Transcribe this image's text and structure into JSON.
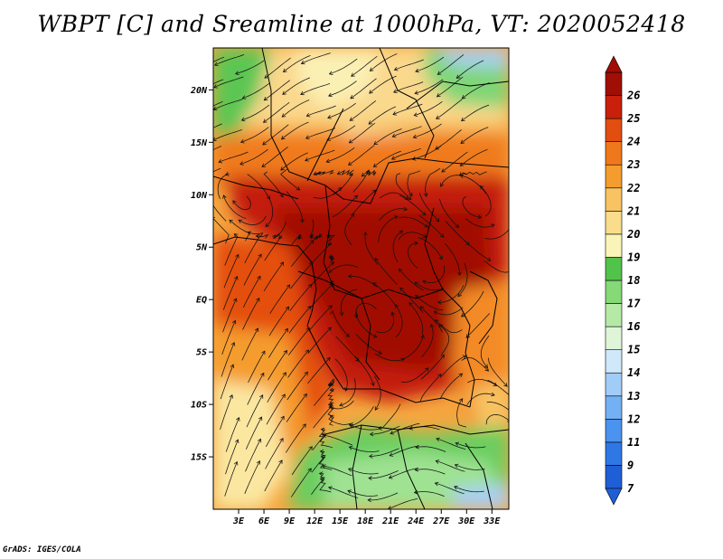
{
  "title": "WBPT [C] and Sreamline at 1000hPa, VT: 2020052418",
  "credit": "GrADS: IGES/COLA",
  "map": {
    "lat_range": [
      -20,
      24
    ],
    "lon_range": [
      0,
      35
    ],
    "lat_ticks": [
      {
        "lat": 20,
        "label": "20N"
      },
      {
        "lat": 15,
        "label": "15N"
      },
      {
        "lat": 10,
        "label": "10N"
      },
      {
        "lat": 5,
        "label": "5N"
      },
      {
        "lat": 0,
        "label": "EQ"
      },
      {
        "lat": -5,
        "label": "5S"
      },
      {
        "lat": -10,
        "label": "10S"
      },
      {
        "lat": -15,
        "label": "15S"
      }
    ],
    "lon_ticks": [
      {
        "lon": 3,
        "label": "3E"
      },
      {
        "lon": 6,
        "label": "6E"
      },
      {
        "lon": 9,
        "label": "9E"
      },
      {
        "lon": 12,
        "label": "12E"
      },
      {
        "lon": 15,
        "label": "15E"
      },
      {
        "lon": 18,
        "label": "18E"
      },
      {
        "lon": 21,
        "label": "21E"
      },
      {
        "lon": 24,
        "label": "24E"
      },
      {
        "lon": 27,
        "label": "27E"
      },
      {
        "lon": 30,
        "label": "30E"
      },
      {
        "lon": 33,
        "label": "33E"
      }
    ]
  },
  "colorbar": {
    "labels": [
      "7",
      "9",
      "11",
      "12",
      "13",
      "14",
      "15",
      "16",
      "17",
      "18",
      "19",
      "20",
      "21",
      "22",
      "23",
      "24",
      "25",
      "26"
    ],
    "colors": [
      "#1f5fd6",
      "#2e78e6",
      "#4a93ee",
      "#74b0f4",
      "#a2ccf8",
      "#cfe8fa",
      "#dff5d8",
      "#b4eaa6",
      "#85d977",
      "#52c34a",
      "#fbf4b8",
      "#fadd8a",
      "#f8c362",
      "#f59c2e",
      "#f0781c",
      "#e24d10",
      "#c8200a",
      "#a00e04"
    ]
  }
}
